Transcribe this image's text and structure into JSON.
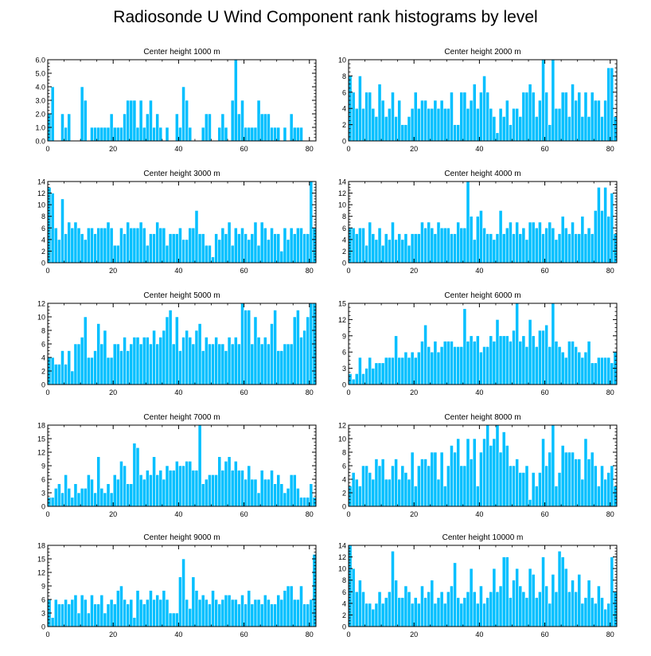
{
  "title": "Radiosonde U Wind Component rank histograms by level",
  "colors": {
    "bar": "#00BFFF",
    "bar_edge": "#ffffff",
    "axis": "#000000"
  },
  "chart_data": [
    {
      "type": "bar",
      "title": "Center height 1000 m",
      "ylim": [
        0,
        6
      ],
      "yticks": [
        "0.0",
        "1.0",
        "2.0",
        "3.0",
        "4.0",
        "5.0",
        "6.0"
      ],
      "xlim": [
        0,
        82
      ],
      "xticks": [
        "0",
        "20",
        "40",
        "60",
        "80"
      ],
      "values": [
        2,
        4,
        0,
        0,
        2,
        1,
        2,
        0,
        0,
        0,
        4,
        3,
        0,
        1,
        1,
        1,
        1,
        1,
        1,
        2,
        1,
        1,
        1,
        2,
        3,
        3,
        3,
        1,
        3,
        1,
        2,
        3,
        1,
        2,
        1,
        0,
        1,
        0,
        0,
        2,
        1,
        4,
        3,
        1,
        0,
        0,
        0,
        1,
        2,
        2,
        0,
        0,
        1,
        2,
        1,
        0,
        3,
        6,
        2,
        3,
        1,
        1,
        1,
        1,
        3,
        2,
        2,
        2,
        1,
        1,
        1,
        0,
        1,
        0,
        2,
        1,
        1,
        1,
        0,
        0,
        0,
        0
      ]
    },
    {
      "type": "bar",
      "title": "Center height 2000 m",
      "ylim": [
        0,
        10
      ],
      "yticks": [
        "0",
        "2",
        "4",
        "6",
        "8",
        "10"
      ],
      "xlim": [
        0,
        82
      ],
      "xticks": [
        "0",
        "20",
        "40",
        "60",
        "80"
      ],
      "values": [
        8,
        6,
        4,
        8,
        4,
        6,
        6,
        4,
        3,
        7,
        5,
        3,
        4,
        6,
        3,
        5,
        2,
        2,
        3,
        4,
        6,
        4,
        5,
        5,
        4,
        4,
        5,
        4,
        5,
        4,
        4,
        6,
        2,
        2,
        6,
        6,
        4,
        5,
        7,
        4,
        6,
        8,
        6,
        4,
        3,
        1,
        4,
        3,
        5,
        2,
        4,
        4,
        3,
        6,
        6,
        7,
        6,
        3,
        5,
        10,
        6,
        2,
        10,
        4,
        4,
        6,
        6,
        3,
        7,
        5,
        6,
        3,
        6,
        3,
        6,
        5,
        5,
        3,
        5,
        9,
        9,
        3
      ]
    },
    {
      "type": "bar",
      "title": "Center height 3000 m",
      "ylim": [
        0,
        14
      ],
      "yticks": [
        "0",
        "2",
        "4",
        "6",
        "8",
        "10",
        "12",
        "14"
      ],
      "xlim": [
        0,
        82
      ],
      "xticks": [
        "0",
        "20",
        "40",
        "60",
        "80"
      ],
      "values": [
        13,
        12,
        6,
        4,
        11,
        5,
        7,
        6,
        7,
        6,
        5,
        4,
        6,
        6,
        5,
        6,
        6,
        6,
        7,
        6,
        3,
        3,
        6,
        5,
        7,
        6,
        6,
        6,
        7,
        6,
        3,
        5,
        5,
        7,
        6,
        6,
        3,
        5,
        5,
        5,
        6,
        4,
        4,
        6,
        6,
        9,
        5,
        5,
        3,
        3,
        1,
        5,
        4,
        6,
        5,
        7,
        3,
        6,
        5,
        6,
        5,
        4,
        5,
        7,
        3,
        7,
        6,
        4,
        6,
        5,
        5,
        2,
        6,
        4,
        6,
        5,
        6,
        6,
        5,
        5,
        14,
        6
      ]
    },
    {
      "type": "bar",
      "title": "Center height 4000 m",
      "ylim": [
        0,
        14
      ],
      "yticks": [
        "0",
        "2",
        "4",
        "6",
        "8",
        "10",
        "12",
        "14"
      ],
      "xlim": [
        0,
        82
      ],
      "xticks": [
        "0",
        "20",
        "40",
        "60",
        "80"
      ],
      "values": [
        6,
        6,
        5,
        6,
        6,
        3,
        7,
        5,
        4,
        6,
        3,
        5,
        4,
        7,
        4,
        5,
        4,
        5,
        3,
        5,
        5,
        5,
        7,
        6,
        7,
        6,
        5,
        7,
        6,
        6,
        6,
        5,
        5,
        7,
        6,
        6,
        14,
        8,
        4,
        8,
        9,
        6,
        5,
        5,
        4,
        5,
        9,
        5,
        6,
        7,
        5,
        7,
        5,
        6,
        4,
        7,
        7,
        6,
        7,
        5,
        6,
        7,
        6,
        4,
        5,
        8,
        6,
        5,
        7,
        5,
        5,
        8,
        5,
        6,
        5,
        9,
        13,
        9,
        13,
        8,
        12,
        5
      ]
    },
    {
      "type": "bar",
      "title": "Center height 5000 m",
      "ylim": [
        0,
        12
      ],
      "yticks": [
        "0",
        "2",
        "4",
        "6",
        "8",
        "10",
        "12"
      ],
      "xlim": [
        0,
        82
      ],
      "xticks": [
        "0",
        "20",
        "40",
        "60",
        "80"
      ],
      "values": [
        4,
        4,
        3,
        3,
        5,
        3,
        5,
        2,
        6,
        6,
        7,
        10,
        4,
        4,
        5,
        9,
        6,
        8,
        4,
        4,
        6,
        6,
        5,
        7,
        5,
        6,
        7,
        7,
        6,
        7,
        7,
        6,
        8,
        6,
        7,
        8,
        10,
        11,
        6,
        10,
        5,
        7,
        8,
        7,
        6,
        8,
        9,
        5,
        7,
        6,
        6,
        7,
        6,
        6,
        5,
        7,
        6,
        7,
        6,
        12,
        11,
        11,
        6,
        10,
        7,
        6,
        7,
        6,
        9,
        11,
        5,
        5,
        6,
        6,
        6,
        10,
        11,
        7,
        8,
        10,
        12,
        12
      ]
    },
    {
      "type": "bar",
      "title": "Center height 6000 m",
      "ylim": [
        0,
        15
      ],
      "yticks": [
        "0",
        "3",
        "6",
        "9",
        "12",
        "15"
      ],
      "xlim": [
        0,
        82
      ],
      "xticks": [
        "0",
        "20",
        "40",
        "60",
        "80"
      ],
      "values": [
        2,
        1,
        2,
        5,
        2,
        3,
        5,
        3,
        4,
        4,
        4,
        5,
        5,
        5,
        9,
        5,
        5,
        6,
        5,
        6,
        5,
        6,
        8,
        11,
        7,
        6,
        8,
        6,
        7,
        8,
        8,
        8,
        7,
        7,
        7,
        14,
        8,
        9,
        8,
        9,
        6,
        7,
        7,
        9,
        8,
        12,
        9,
        9,
        9,
        8,
        10,
        15,
        8,
        9,
        7,
        12,
        9,
        7,
        10,
        10,
        11,
        7,
        15,
        8,
        7,
        6,
        5,
        8,
        8,
        7,
        6,
        5,
        6,
        8,
        4,
        4,
        5,
        5,
        5,
        5,
        4,
        6
      ]
    },
    {
      "type": "bar",
      "title": "Center height 7000 m",
      "ylim": [
        0,
        18
      ],
      "yticks": [
        "0",
        "3",
        "6",
        "9",
        "12",
        "15",
        "18"
      ],
      "xlim": [
        0,
        82
      ],
      "xticks": [
        "0",
        "20",
        "40",
        "60",
        "80"
      ],
      "values": [
        2,
        2,
        4,
        5,
        3,
        7,
        4,
        2,
        5,
        3,
        4,
        4,
        7,
        6,
        3,
        11,
        4,
        3,
        5,
        3,
        7,
        6,
        10,
        9,
        5,
        5,
        14,
        13,
        7,
        6,
        8,
        7,
        11,
        7,
        8,
        6,
        9,
        8,
        8,
        10,
        9,
        9,
        10,
        10,
        8,
        8,
        18,
        5,
        6,
        7,
        7,
        7,
        11,
        8,
        10,
        11,
        8,
        10,
        8,
        8,
        6,
        9,
        6,
        6,
        3,
        8,
        6,
        6,
        8,
        5,
        7,
        5,
        3,
        4,
        7,
        7,
        4,
        2,
        2,
        2,
        5,
        2
      ]
    },
    {
      "type": "bar",
      "title": "Center height 8000 m",
      "ylim": [
        0,
        12
      ],
      "yticks": [
        "0",
        "2",
        "4",
        "6",
        "8",
        "10",
        "12"
      ],
      "xlim": [
        0,
        82
      ],
      "xticks": [
        "0",
        "20",
        "40",
        "60",
        "80"
      ],
      "values": [
        3,
        5,
        4,
        3,
        6,
        6,
        5,
        4,
        7,
        6,
        7,
        4,
        4,
        6,
        7,
        4,
        6,
        5,
        4,
        8,
        3,
        6,
        7,
        7,
        6,
        8,
        8,
        4,
        8,
        3,
        6,
        9,
        8,
        10,
        6,
        6,
        10,
        7,
        10,
        3,
        8,
        10,
        12,
        9,
        10,
        12,
        8,
        11,
        9,
        6,
        6,
        7,
        5,
        5,
        6,
        1,
        5,
        3,
        5,
        10,
        6,
        8,
        12,
        3,
        5,
        9,
        8,
        8,
        8,
        7,
        7,
        4,
        10,
        7,
        8,
        6,
        3,
        6,
        4,
        5,
        6,
        3
      ]
    },
    {
      "type": "bar",
      "title": "Center height 9000 m",
      "ylim": [
        0,
        18
      ],
      "yticks": [
        "0",
        "3",
        "6",
        "9",
        "12",
        "15",
        "18"
      ],
      "xlim": [
        0,
        82
      ],
      "xticks": [
        "0",
        "20",
        "40",
        "60",
        "80"
      ],
      "values": [
        6,
        2,
        6,
        5,
        5,
        6,
        5,
        6,
        7,
        3,
        7,
        6,
        3,
        7,
        5,
        5,
        7,
        3,
        5,
        6,
        5,
        8,
        9,
        6,
        5,
        6,
        2,
        8,
        6,
        5,
        6,
        8,
        6,
        7,
        6,
        8,
        6,
        3,
        3,
        3,
        11,
        15,
        6,
        4,
        11,
        8,
        6,
        7,
        6,
        5,
        8,
        6,
        5,
        6,
        7,
        7,
        6,
        6,
        5,
        7,
        5,
        8,
        5,
        6,
        6,
        5,
        7,
        6,
        5,
        5,
        7,
        6,
        8,
        9,
        9,
        6,
        6,
        9,
        5,
        5,
        6,
        16
      ]
    },
    {
      "type": "bar",
      "title": "Center height 10000 m",
      "ylim": [
        0,
        14
      ],
      "yticks": [
        "0",
        "2",
        "4",
        "6",
        "8",
        "10",
        "12",
        "14"
      ],
      "xlim": [
        0,
        82
      ],
      "xticks": [
        "0",
        "20",
        "40",
        "60",
        "80"
      ],
      "values": [
        14,
        10,
        6,
        8,
        6,
        4,
        4,
        3,
        4,
        6,
        4,
        5,
        6,
        13,
        8,
        5,
        5,
        7,
        6,
        4,
        5,
        4,
        7,
        5,
        6,
        8,
        4,
        5,
        6,
        4,
        6,
        7,
        11,
        5,
        4,
        5,
        6,
        10,
        6,
        4,
        7,
        4,
        5,
        6,
        10,
        6,
        7,
        12,
        12,
        5,
        8,
        10,
        7,
        6,
        5,
        10,
        9,
        5,
        6,
        12,
        7,
        4,
        9,
        6,
        13,
        12,
        10,
        6,
        8,
        6,
        9,
        4,
        5,
        8,
        5,
        4,
        7,
        5,
        3,
        4,
        12,
        6
      ]
    }
  ]
}
